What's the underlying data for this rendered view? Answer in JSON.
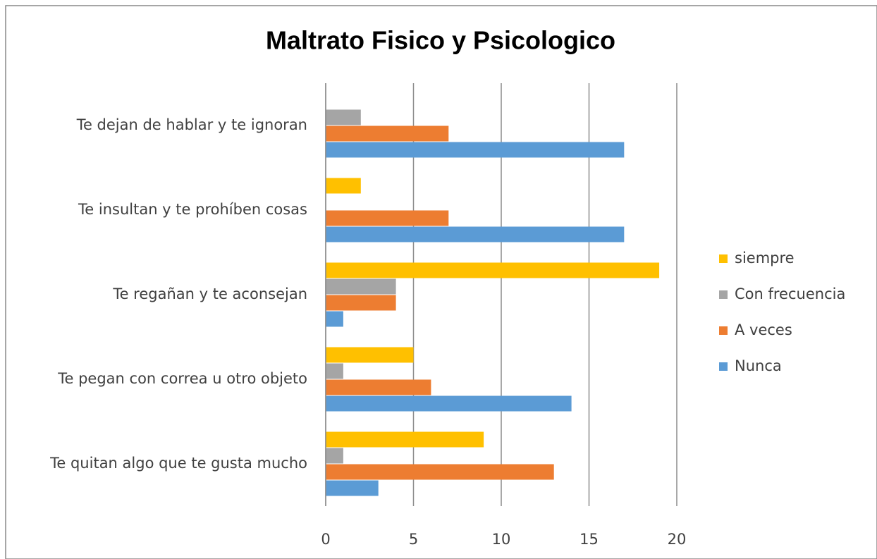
{
  "chart_data": {
    "type": "barh",
    "title": "Maltrato Fisico y Psicologico",
    "categories": [
      "Te dejan de hablar y te ignoran",
      "Te insultan y te prohíben cosas",
      "Te regañan y te aconsejan",
      "Te pegan con correa u otro objeto",
      "Te quitan algo que te gusta mucho"
    ],
    "series": [
      {
        "name": "siempre",
        "color": "#ffc000",
        "values": [
          0,
          2,
          19,
          5,
          9
        ]
      },
      {
        "name": "Con frecuencia",
        "color": "#a5a5a5",
        "values": [
          2,
          0,
          4,
          1,
          1
        ]
      },
      {
        "name": "A veces",
        "color": "#ed7d31",
        "values": [
          7,
          7,
          4,
          6,
          13
        ]
      },
      {
        "name": "Nunca",
        "color": "#5b9bd5",
        "values": [
          17,
          17,
          1,
          14,
          3
        ]
      }
    ],
    "xlim": [
      0,
      20
    ],
    "xticks": [
      0,
      5,
      10,
      15,
      20
    ],
    "grid": true,
    "legend": "right"
  }
}
